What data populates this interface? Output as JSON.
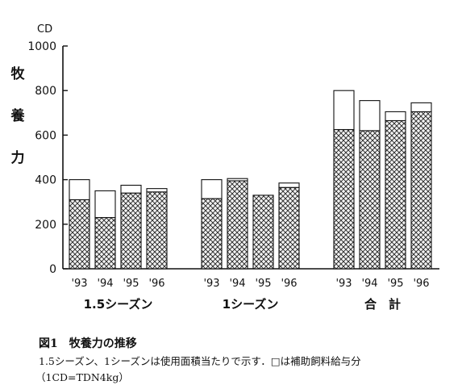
{
  "chart_data": {
    "type": "bar",
    "stacked": true,
    "unit_label": "CD",
    "ylabel": "牧養力",
    "ylim": [
      0,
      1000
    ],
    "yticks": [
      0,
      200,
      400,
      600,
      800,
      1000
    ],
    "grid": false,
    "groups": [
      {
        "label": "1.5シーズン",
        "categories": [
          "'93",
          "'94",
          "'95",
          "'96"
        ]
      },
      {
        "label": "1シーズン",
        "categories": [
          "'93",
          "'94",
          "'95",
          "'96"
        ]
      },
      {
        "label": "合　計",
        "categories": [
          "'93",
          "'94",
          "'95",
          "'96"
        ]
      }
    ],
    "series": [
      {
        "pattern": "crosshatch",
        "values": [
          [
            310,
            230,
            340,
            345
          ],
          [
            315,
            395,
            330,
            365
          ],
          [
            625,
            620,
            665,
            705
          ]
        ]
      },
      {
        "pattern": "open",
        "values": [
          [
            90,
            120,
            35,
            15
          ],
          [
            85,
            10,
            0,
            20
          ],
          [
            175,
            135,
            40,
            40
          ]
        ]
      }
    ]
  },
  "caption": {
    "title": "図1　牧養力の推移",
    "note": "1.5シーズン、1シーズンは使用面積当たりで示す．□は補助飼料給与分",
    "unit": "（1CD=TDN4kg）"
  }
}
